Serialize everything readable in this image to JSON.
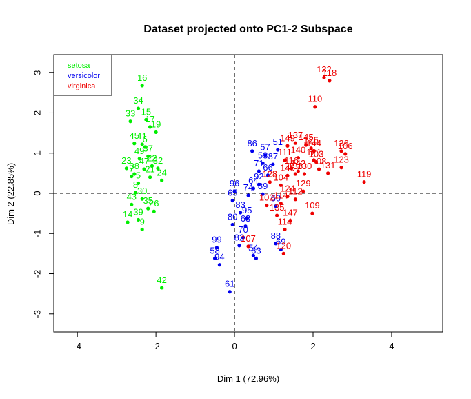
{
  "chart_data": {
    "type": "scatter",
    "title": "Dataset projected onto PC1-2 Subspace",
    "xlabel": "Dim 1 (72.96%)",
    "ylabel": "Dim 2 (22.85%)",
    "xlim": [
      -4.6,
      5.3
    ],
    "ylim": [
      -3.45,
      3.45
    ],
    "xticks": [
      -4,
      -2,
      0,
      2,
      4
    ],
    "yticks": [
      -3,
      -2,
      -1,
      0,
      1,
      2,
      3
    ],
    "reference_lines": {
      "x": 0,
      "y": 0,
      "style": "dashed"
    },
    "grid": false,
    "legend_position": "top-left",
    "series": [
      {
        "name": "setosa",
        "color": "#00ee00",
        "points": [
          {
            "x": -2.35,
            "y": 2.68,
            "label": "16"
          },
          {
            "x": -2.45,
            "y": 2.11,
            "label": "34"
          },
          {
            "x": -2.65,
            "y": 1.79,
            "label": "33"
          },
          {
            "x": -2.25,
            "y": 1.83,
            "label": "15"
          },
          {
            "x": -2.15,
            "y": 1.65,
            "label": "17"
          },
          {
            "x": -2.0,
            "y": 1.52,
            "label": "19"
          },
          {
            "x": -2.35,
            "y": 1.22,
            "label": "11"
          },
          {
            "x": -2.55,
            "y": 1.24,
            "label": "45"
          },
          {
            "x": -2.28,
            "y": 1.15,
            "label": "6"
          },
          {
            "x": -2.2,
            "y": 0.92,
            "label": "37"
          },
          {
            "x": -2.1,
            "y": 0.68,
            "label": "22"
          },
          {
            "x": -2.42,
            "y": 0.86,
            "label": "49"
          },
          {
            "x": -2.75,
            "y": 0.62,
            "label": "23"
          },
          {
            "x": -1.95,
            "y": 0.62,
            "label": "32"
          },
          {
            "x": -2.3,
            "y": 0.6,
            "label": "47"
          },
          {
            "x": -2.55,
            "y": 0.48,
            "label": "38"
          },
          {
            "x": -2.62,
            "y": 0.42,
            "label": "7"
          },
          {
            "x": -2.15,
            "y": 0.4,
            "label": "21"
          },
          {
            "x": -1.85,
            "y": 0.32,
            "label": "24"
          },
          {
            "x": -2.45,
            "y": 0.25,
            "label": "5"
          },
          {
            "x": -2.52,
            "y": 0.02,
            "label": "8"
          },
          {
            "x": -2.35,
            "y": -0.14,
            "label": "30"
          },
          {
            "x": -2.62,
            "y": -0.28,
            "label": "43"
          },
          {
            "x": -2.2,
            "y": -0.38,
            "label": "35"
          },
          {
            "x": -2.05,
            "y": -0.45,
            "label": "26"
          },
          {
            "x": -2.45,
            "y": -0.66,
            "label": "39"
          },
          {
            "x": -2.72,
            "y": -0.72,
            "label": "14"
          },
          {
            "x": -2.35,
            "y": -0.9,
            "label": "9"
          },
          {
            "x": -1.85,
            "y": -2.35,
            "label": "42"
          }
        ]
      },
      {
        "name": "versicolor",
        "color": "#0000ee",
        "points": [
          {
            "x": 0.45,
            "y": 1.05,
            "label": "86"
          },
          {
            "x": 1.1,
            "y": 1.08,
            "label": "51"
          },
          {
            "x": 0.78,
            "y": 0.95,
            "label": "57"
          },
          {
            "x": 0.72,
            "y": 0.75,
            "label": "53"
          },
          {
            "x": 0.98,
            "y": 0.72,
            "label": "87"
          },
          {
            "x": 0.62,
            "y": 0.55,
            "label": "71"
          },
          {
            "x": 0.85,
            "y": 0.45,
            "label": "66"
          },
          {
            "x": 0.62,
            "y": 0.22,
            "label": "92"
          },
          {
            "x": 0.48,
            "y": 0.12,
            "label": "64"
          },
          {
            "x": 0.0,
            "y": 0.05,
            "label": "96"
          },
          {
            "x": -0.05,
            "y": -0.18,
            "label": "65"
          },
          {
            "x": 0.35,
            "y": -0.05,
            "label": "74"
          },
          {
            "x": 0.72,
            "y": -0.02,
            "label": "89"
          },
          {
            "x": 1.05,
            "y": -0.32,
            "label": "60"
          },
          {
            "x": 0.15,
            "y": -0.48,
            "label": "83"
          },
          {
            "x": 0.32,
            "y": -0.62,
            "label": "95"
          },
          {
            "x": -0.05,
            "y": -0.78,
            "label": "80"
          },
          {
            "x": 0.28,
            "y": -0.82,
            "label": "63"
          },
          {
            "x": 0.22,
            "y": -1.1,
            "label": "70"
          },
          {
            "x": 0.12,
            "y": -1.3,
            "label": "82"
          },
          {
            "x": -0.45,
            "y": -1.35,
            "label": "99"
          },
          {
            "x": -0.5,
            "y": -1.62,
            "label": "58"
          },
          {
            "x": -0.38,
            "y": -1.78,
            "label": "94"
          },
          {
            "x": 0.48,
            "y": -1.55,
            "label": "54"
          },
          {
            "x": 0.55,
            "y": -1.62,
            "label": "63"
          },
          {
            "x": 1.05,
            "y": -1.25,
            "label": "88"
          },
          {
            "x": 1.18,
            "y": -1.4,
            "label": "69"
          },
          {
            "x": -0.12,
            "y": -2.45,
            "label": "61"
          }
        ]
      },
      {
        "name": "virginica",
        "color": "#ee0000",
        "points": [
          {
            "x": 2.28,
            "y": 2.88,
            "label": "132"
          },
          {
            "x": 2.42,
            "y": 2.8,
            "label": "118"
          },
          {
            "x": 2.05,
            "y": 2.15,
            "label": "110"
          },
          {
            "x": 1.55,
            "y": 1.25,
            "label": "137"
          },
          {
            "x": 1.35,
            "y": 1.18,
            "label": "149"
          },
          {
            "x": 1.82,
            "y": 1.2,
            "label": "145"
          },
          {
            "x": 1.95,
            "y": 1.12,
            "label": "125"
          },
          {
            "x": 2.02,
            "y": 1.05,
            "label": "144"
          },
          {
            "x": 1.28,
            "y": 0.82,
            "label": "111"
          },
          {
            "x": 1.62,
            "y": 0.88,
            "label": "140"
          },
          {
            "x": 2.02,
            "y": 0.82,
            "label": "121"
          },
          {
            "x": 2.72,
            "y": 1.05,
            "label": "136"
          },
          {
            "x": 2.82,
            "y": 0.98,
            "label": "106"
          },
          {
            "x": 2.08,
            "y": 0.78,
            "label": "103"
          },
          {
            "x": 1.45,
            "y": 0.62,
            "label": "116"
          },
          {
            "x": 1.62,
            "y": 0.55,
            "label": "142"
          },
          {
            "x": 2.15,
            "y": 0.6,
            "label": "108"
          },
          {
            "x": 2.72,
            "y": 0.64,
            "label": "123"
          },
          {
            "x": 2.38,
            "y": 0.5,
            "label": "131"
          },
          {
            "x": 1.35,
            "y": 0.44,
            "label": "146"
          },
          {
            "x": 1.55,
            "y": 0.48,
            "label": "138"
          },
          {
            "x": 1.78,
            "y": 0.48,
            "label": "130"
          },
          {
            "x": 0.9,
            "y": 0.28,
            "label": "128"
          },
          {
            "x": 1.18,
            "y": 0.2,
            "label": "104"
          },
          {
            "x": 3.3,
            "y": 0.28,
            "label": "119"
          },
          {
            "x": 1.75,
            "y": 0.05,
            "label": "129"
          },
          {
            "x": 1.35,
            "y": -0.08,
            "label": "124"
          },
          {
            "x": 1.55,
            "y": -0.15,
            "label": "112"
          },
          {
            "x": 1.18,
            "y": -0.25,
            "label": "114"
          },
          {
            "x": 0.82,
            "y": -0.3,
            "label": "102"
          },
          {
            "x": 1.08,
            "y": -0.55,
            "label": "135"
          },
          {
            "x": 1.98,
            "y": -0.5,
            "label": "109"
          },
          {
            "x": 1.42,
            "y": -0.68,
            "label": "147"
          },
          {
            "x": 1.28,
            "y": -0.9,
            "label": "114"
          },
          {
            "x": 0.35,
            "y": -1.32,
            "label": "107"
          },
          {
            "x": 1.25,
            "y": -1.5,
            "label": "120"
          }
        ]
      }
    ]
  }
}
